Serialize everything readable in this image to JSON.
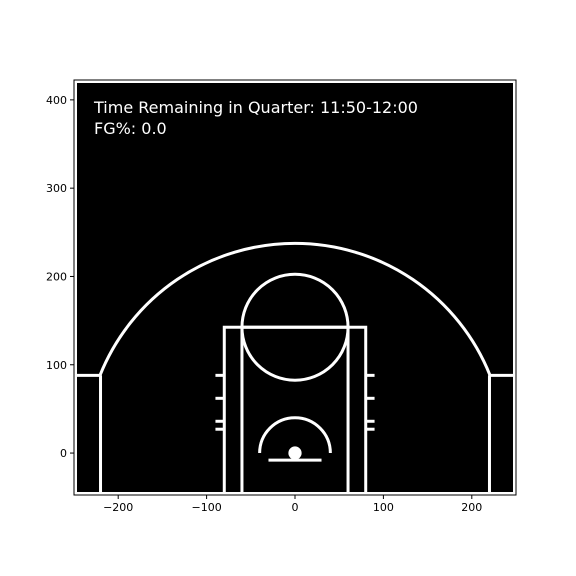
{
  "chart_data": {
    "type": "shot-chart",
    "annotations": [
      "Time Remaining in Quarter: 11:50-12:00",
      "FG%: 0.0"
    ],
    "xlim": [
      -250,
      250
    ],
    "ylim": [
      -47.5,
      422.5
    ],
    "xticks": [
      {
        "value": -200,
        "label": "−200"
      },
      {
        "value": -100,
        "label": "−100"
      },
      0,
      100,
      200
    ],
    "yticks": [
      0,
      100,
      200,
      300,
      400
    ],
    "background": "#000000",
    "line_color": "#ffffff"
  }
}
